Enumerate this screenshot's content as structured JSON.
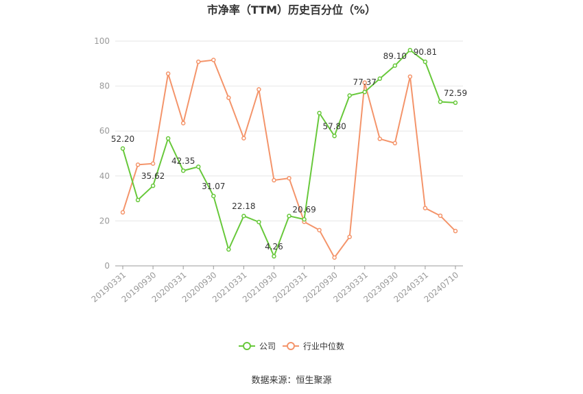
{
  "chart_data": {
    "type": "line",
    "title": "市净率（TTM）历史百分位（%）",
    "source": "数据来源：恒生聚源",
    "ylim": [
      0,
      100
    ],
    "yticks": [
      "0",
      "20",
      "40",
      "60",
      "80",
      "100"
    ],
    "x_tick_labels": [
      "20190331",
      "20190930",
      "20200331",
      "20200930",
      "20210331",
      "20210930",
      "20220331",
      "20220930",
      "20230331",
      "20230930",
      "20240331",
      "20240710"
    ],
    "x": [
      "20190331",
      "20190630",
      "20190930",
      "20191231",
      "20200331",
      "20200630",
      "20200930",
      "20201231",
      "20210331",
      "20210630",
      "20210930",
      "20211231",
      "20220331",
      "20220630",
      "20220930",
      "20221231",
      "20230331",
      "20230630",
      "20230930",
      "20231231",
      "20240331",
      "20240630",
      "20240710"
    ],
    "series": [
      {
        "name": "公司",
        "color": "#67c83a",
        "values": [
          52.2,
          29.3,
          35.62,
          56.7,
          42.35,
          44.1,
          31.07,
          7.3,
          22.18,
          19.5,
          4.26,
          22.2,
          20.69,
          68.0,
          57.8,
          75.8,
          77.37,
          83.3,
          89.1,
          96.0,
          90.81,
          73.0,
          72.59
        ],
        "labels": [
          "52.20",
          "",
          "35.62",
          "",
          "42.35",
          "",
          "31.07",
          "",
          "22.18",
          "",
          "4.26",
          "",
          "20.69",
          "",
          "57.80",
          "",
          "77.37",
          "",
          "89.10",
          "",
          "90.81",
          "",
          "72.59"
        ]
      },
      {
        "name": "行业中位数",
        "color": "#f4946a",
        "values": [
          23.8,
          45.0,
          45.5,
          85.5,
          63.5,
          90.8,
          91.6,
          74.8,
          56.8,
          78.5,
          38.1,
          39.0,
          19.6,
          15.9,
          3.7,
          12.9,
          81.5,
          56.5,
          54.6,
          84.2,
          25.7,
          22.3,
          15.5
        ]
      }
    ]
  }
}
